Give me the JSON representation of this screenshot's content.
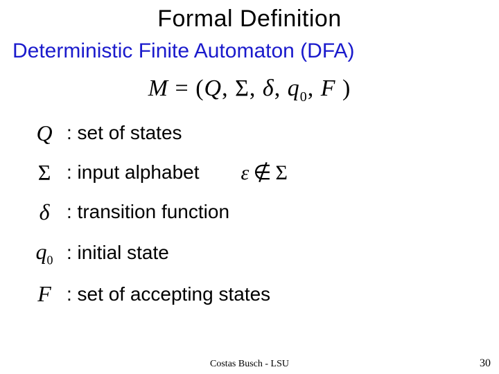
{
  "title": "Formal Definition",
  "subtitle_text": "Deterministic Finite Automaton (DFA)",
  "subtitle_color": "#1a1acc",
  "equation": {
    "lhs": "M",
    "eq": " = ",
    "open": "(",
    "Q": "Q",
    "c1": ", ",
    "Sigma": "Σ",
    "c2": ", ",
    "delta": "δ",
    "c3": ", ",
    "q": "q",
    "q_sub": "0",
    "c4": ", ",
    "F": "F",
    "close": " )"
  },
  "rows": {
    "Q": {
      "sym": "Q",
      "desc": ": set of states"
    },
    "Sigma": {
      "sym": "Σ",
      "desc": ": input alphabet"
    },
    "delta": {
      "sym": "δ",
      "desc": ": transition function"
    },
    "q0": {
      "sym_q": "q",
      "sym_sub": "0",
      "desc": ": initial state"
    },
    "F": {
      "sym": "F",
      "desc": ": set of accepting states"
    }
  },
  "sidenote": {
    "eps": "ε",
    "notin": "∉",
    "Sigma": "Σ"
  },
  "footer": "Costas Busch - LSU",
  "page_number": "30",
  "text_color": "#000000",
  "background": "#ffffff"
}
